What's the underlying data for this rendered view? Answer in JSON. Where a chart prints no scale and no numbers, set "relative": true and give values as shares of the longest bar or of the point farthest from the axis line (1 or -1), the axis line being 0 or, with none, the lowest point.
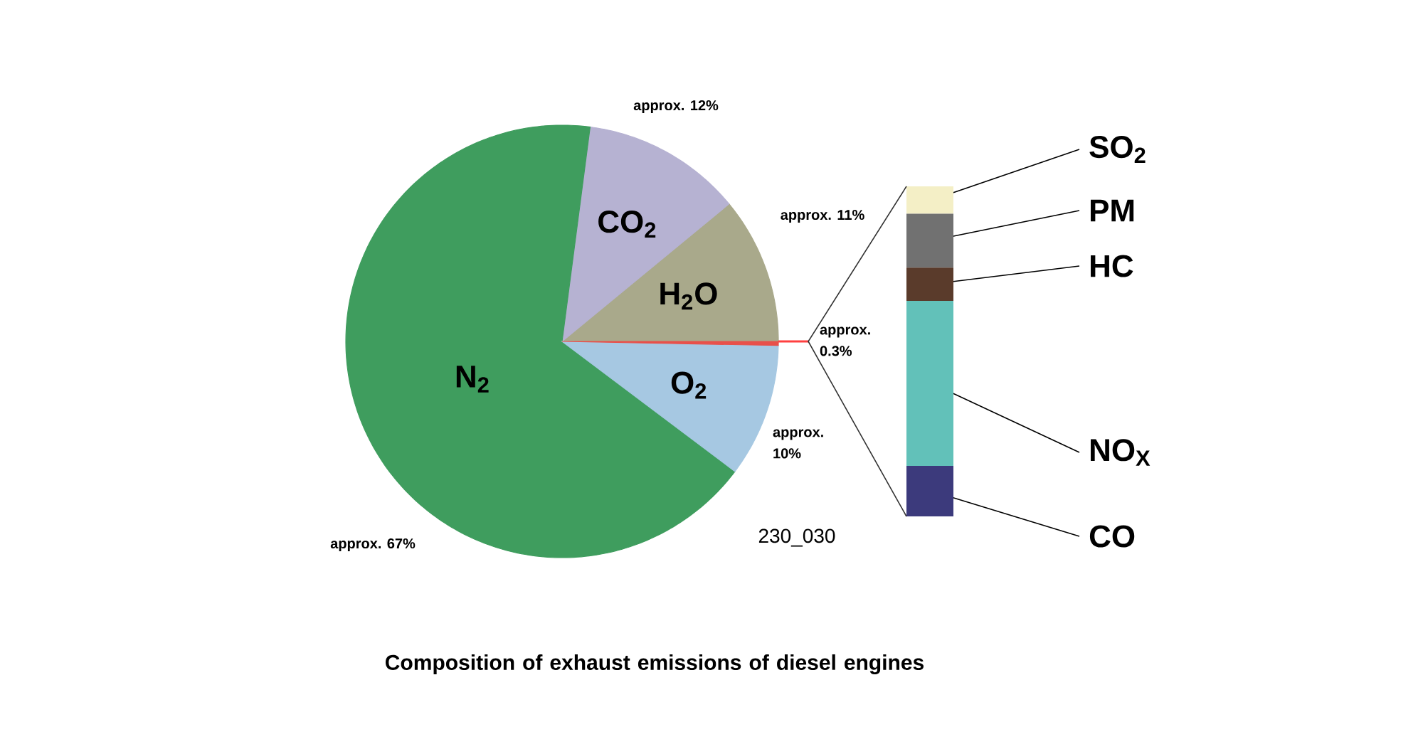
{
  "chart_data": [
    {
      "type": "pie",
      "title": "Composition of exhaust emissions of diesel engines",
      "categories": [
        "H$_{2}$O",
        "CO$_{2}$",
        "N$_{2}$",
        "O$_{2}$",
        null
      ],
      "values": [
        11,
        12,
        67,
        10,
        0.3
      ],
      "colors": [
        "#a9a98b",
        "#b6b2d2",
        "#3f9d5e",
        "#a6c8e2",
        "#e8504a"
      ],
      "value_labels": [
        "approx. 11%",
        "approx. 12%",
        "approx. 67%",
        "approx. 10%",
        "approx. 0.3%"
      ],
      "annotations": [
        "230_030"
      ]
    },
    {
      "type": "bar",
      "stacked": true,
      "relative": true,
      "categories": [
        null
      ],
      "series": [
        {
          "name": "CO",
          "color": "#3c3a7c",
          "values": [
            0.153
          ]
        },
        {
          "name": "NO$_{X}$",
          "color": "#62c1b9",
          "values": [
            0.5
          ]
        },
        {
          "name": "HC",
          "color": "#5a3b2b",
          "values": [
            0.101
          ]
        },
        {
          "name": "PM",
          "color": "#717171",
          "values": [
            0.163
          ]
        },
        {
          "name": "SO$_{2}$",
          "color": "#f4efc6",
          "values": [
            0.083
          ]
        }
      ]
    }
  ]
}
